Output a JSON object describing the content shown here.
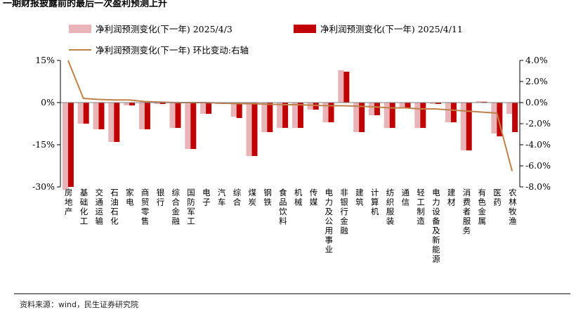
{
  "title": "一期财报披露前的最后一次盈利预测上升",
  "source": "资料来源：wind，民生证券研究院",
  "colors": {
    "series1": "#e8b4b8",
    "series2": "#c00000",
    "line": "#c0804a",
    "axis": "#7f7f7f",
    "frame": "#000000"
  },
  "chart_data": {
    "type": "bar",
    "categories": [
      "房地产",
      "基础化工",
      "交通运输",
      "石油石化",
      "家电",
      "商贸零售",
      "银行",
      "综合金融",
      "国防军工",
      "电子",
      "汽车",
      "综合",
      "煤炭",
      "钢铁",
      "食品饮料",
      "机械",
      "传媒",
      "电力及公用事业",
      "非银行金融",
      "建筑",
      "计算机",
      "纺织服装",
      "通信",
      "轻工制造",
      "电力设备及新能源",
      "建材",
      "消费者服务",
      "有色金属",
      "医药",
      "农林牧渔"
    ],
    "series": [
      {
        "name": "净利润预测变化(下一年) 2025/4/3",
        "kind": "bar",
        "axis": "left",
        "values": [
          -31.0,
          -7.5,
          -9.5,
          -14.0,
          -1.0,
          -9.5,
          -0.5,
          -9.0,
          -16.5,
          -4.0,
          -0.5,
          -5.0,
          -19.0,
          -10.5,
          -9.0,
          -9.0,
          -2.5,
          -7.0,
          11.5,
          -10.5,
          -4.5,
          -9.0,
          -2.0,
          -9.0,
          -0.5,
          -7.0,
          -17.0,
          0.5,
          -11.0,
          -4.0
        ]
      },
      {
        "name": "净利润预测变化(下一年) 2025/4/11",
        "kind": "bar",
        "axis": "left",
        "values": [
          -30.0,
          -7.5,
          -9.5,
          -14.0,
          -1.0,
          -9.5,
          -0.5,
          -9.0,
          -16.5,
          -4.0,
          -0.5,
          -5.5,
          -19.0,
          -10.5,
          -9.0,
          -9.0,
          -2.5,
          -7.0,
          11.0,
          -10.5,
          -4.5,
          -9.0,
          -2.0,
          -9.0,
          -0.5,
          -7.0,
          -17.0,
          0.3,
          -12.0,
          -10.5
        ]
      },
      {
        "name": "净利润预测变化(下一年) 环比变动:右轴",
        "kind": "line",
        "axis": "right",
        "values": [
          4.0,
          0.4,
          0.3,
          0.25,
          0.25,
          0.1,
          0.05,
          0.0,
          0.0,
          0.0,
          -0.05,
          -0.1,
          -0.1,
          -0.15,
          -0.2,
          -0.2,
          -0.25,
          -0.3,
          -0.3,
          -0.35,
          -0.4,
          -0.5,
          -0.5,
          -0.6,
          -0.6,
          -0.7,
          -0.8,
          -0.9,
          -1.0,
          -6.5
        ]
      }
    ],
    "y_left": {
      "min": -30,
      "max": 15,
      "ticks": [
        -30,
        -15,
        0,
        15
      ],
      "tick_labels": [
        "-30%",
        "-15%",
        "0%",
        "15%"
      ]
    },
    "y_right": {
      "min": -8,
      "max": 4,
      "ticks": [
        -8,
        -6,
        -4,
        -2,
        0,
        2,
        4
      ],
      "tick_labels": [
        "-8.0%",
        "-6.0%",
        "-4.0%",
        "-2.0%",
        "0.0%",
        "2.0%",
        "4.0%"
      ]
    },
    "legend_position": "top",
    "grid": false
  }
}
